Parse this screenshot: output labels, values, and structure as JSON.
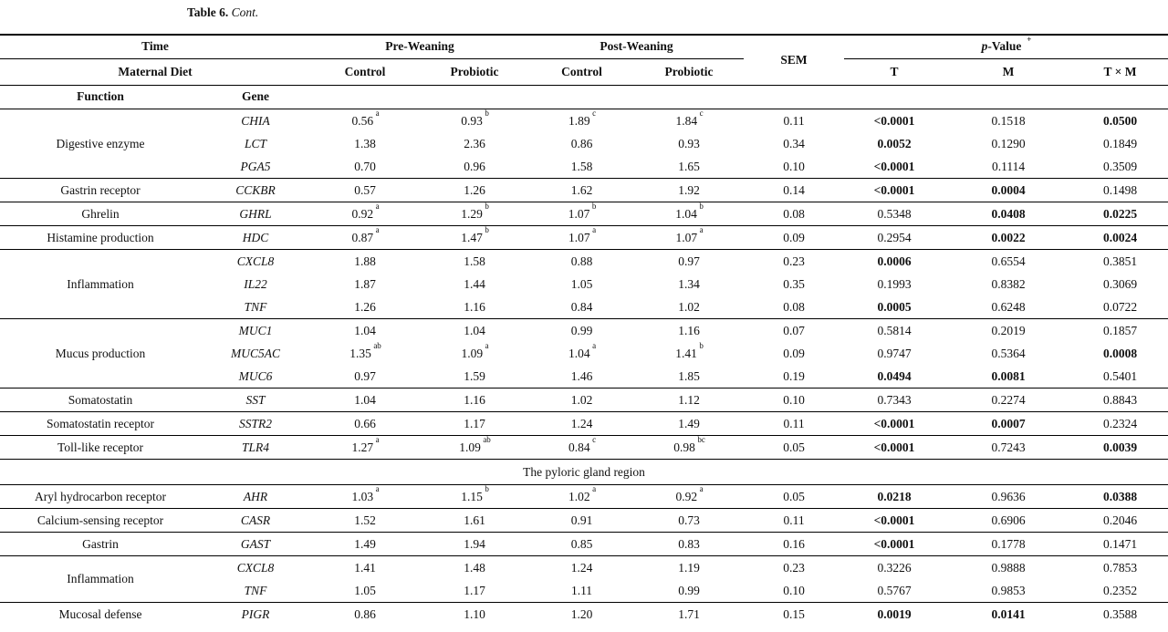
{
  "caption": {
    "label": "Table 6.",
    "cont": "Cont."
  },
  "header": {
    "time": "Time",
    "maternal_diet": "Maternal Diet",
    "function": "Function",
    "gene": "Gene",
    "pre_weaning": "Pre-Weaning",
    "post_weaning": "Post-Weaning",
    "sem": "SEM",
    "p_value": {
      "p": "p",
      "rest": "-Value",
      "sup": "+"
    },
    "control_pre": "Control",
    "probiotic_pre": "Probiotic",
    "control_post": "Control",
    "probiotic_post": "Probiotic",
    "t": "T",
    "m": "M",
    "t_x_m": "T × M"
  },
  "table": {
    "columns": [
      "Function",
      "Gene",
      "Pre-Weaning Control",
      "Pre-Weaning Probiotic",
      "Post-Weaning Control",
      "Post-Weaning Probiotic",
      "SEM",
      "p-Value T",
      "p-Value M",
      "p-Value T × M"
    ],
    "groups": [
      {
        "function": "Digestive enzyme",
        "rows": [
          {
            "gene": "CHIA",
            "cells": [
              {
                "t": "0.56",
                "s": "a"
              },
              {
                "t": "0.93",
                "s": "b"
              },
              {
                "t": "1.89",
                "s": "c"
              },
              {
                "t": "1.84",
                "s": "c"
              },
              {
                "t": "0.11"
              },
              {
                "t": "<0.0001",
                "b": true
              },
              {
                "t": "0.1518"
              },
              {
                "t": "0.0500",
                "b": true
              }
            ]
          },
          {
            "gene": "LCT",
            "cells": [
              {
                "t": "1.38"
              },
              {
                "t": "2.36"
              },
              {
                "t": "0.86"
              },
              {
                "t": "0.93"
              },
              {
                "t": "0.34"
              },
              {
                "t": "0.0052",
                "b": true
              },
              {
                "t": "0.1290"
              },
              {
                "t": "0.1849"
              }
            ]
          },
          {
            "gene": "PGA5",
            "cells": [
              {
                "t": "0.70"
              },
              {
                "t": "0.96"
              },
              {
                "t": "1.58"
              },
              {
                "t": "1.65"
              },
              {
                "t": "0.10"
              },
              {
                "t": "<0.0001",
                "b": true
              },
              {
                "t": "0.1114"
              },
              {
                "t": "0.3509"
              }
            ]
          }
        ]
      },
      {
        "function": "Gastrin receptor",
        "rows": [
          {
            "gene": "CCKBR",
            "cells": [
              {
                "t": "0.57"
              },
              {
                "t": "1.26"
              },
              {
                "t": "1.62"
              },
              {
                "t": "1.92"
              },
              {
                "t": "0.14"
              },
              {
                "t": "<0.0001",
                "b": true
              },
              {
                "t": "0.0004",
                "b": true
              },
              {
                "t": "0.1498"
              }
            ]
          }
        ]
      },
      {
        "function": "Ghrelin",
        "rows": [
          {
            "gene": "GHRL",
            "cells": [
              {
                "t": "0.92",
                "s": "a"
              },
              {
                "t": "1.29",
                "s": "b"
              },
              {
                "t": "1.07",
                "s": "b"
              },
              {
                "t": "1.04",
                "s": "b"
              },
              {
                "t": "0.08"
              },
              {
                "t": "0.5348"
              },
              {
                "t": "0.0408",
                "b": true
              },
              {
                "t": "0.0225",
                "b": true
              }
            ]
          }
        ]
      },
      {
        "function": "Histamine production",
        "rows": [
          {
            "gene": "HDC",
            "cells": [
              {
                "t": "0.87",
                "s": "a"
              },
              {
                "t": "1.47",
                "s": "b"
              },
              {
                "t": "1.07",
                "s": "a"
              },
              {
                "t": "1.07",
                "s": "a"
              },
              {
                "t": "0.09"
              },
              {
                "t": "0.2954"
              },
              {
                "t": "0.0022",
                "b": true
              },
              {
                "t": "0.0024",
                "b": true
              }
            ]
          }
        ]
      },
      {
        "function": "Inflammation",
        "rows": [
          {
            "gene": "CXCL8",
            "cells": [
              {
                "t": "1.88"
              },
              {
                "t": "1.58"
              },
              {
                "t": "0.88"
              },
              {
                "t": "0.97"
              },
              {
                "t": "0.23"
              },
              {
                "t": "0.0006",
                "b": true
              },
              {
                "t": "0.6554"
              },
              {
                "t": "0.3851"
              }
            ]
          },
          {
            "gene": "IL22",
            "cells": [
              {
                "t": "1.87"
              },
              {
                "t": "1.44"
              },
              {
                "t": "1.05"
              },
              {
                "t": "1.34"
              },
              {
                "t": "0.35"
              },
              {
                "t": "0.1993"
              },
              {
                "t": "0.8382"
              },
              {
                "t": "0.3069"
              }
            ]
          },
          {
            "gene": "TNF",
            "cells": [
              {
                "t": "1.26"
              },
              {
                "t": "1.16"
              },
              {
                "t": "0.84"
              },
              {
                "t": "1.02"
              },
              {
                "t": "0.08"
              },
              {
                "t": "0.0005",
                "b": true
              },
              {
                "t": "0.6248"
              },
              {
                "t": "0.0722"
              }
            ]
          }
        ]
      },
      {
        "function": "Mucus production",
        "rows": [
          {
            "gene": "MUC1",
            "cells": [
              {
                "t": "1.04"
              },
              {
                "t": "1.04"
              },
              {
                "t": "0.99"
              },
              {
                "t": "1.16"
              },
              {
                "t": "0.07"
              },
              {
                "t": "0.5814"
              },
              {
                "t": "0.2019"
              },
              {
                "t": "0.1857"
              }
            ]
          },
          {
            "gene": "MUC5AC",
            "cells": [
              {
                "t": "1.35",
                "s": "ab"
              },
              {
                "t": "1.09",
                "s": "a"
              },
              {
                "t": "1.04",
                "s": "a"
              },
              {
                "t": "1.41",
                "s": "b"
              },
              {
                "t": "0.09"
              },
              {
                "t": "0.9747"
              },
              {
                "t": "0.5364"
              },
              {
                "t": "0.0008",
                "b": true
              }
            ]
          },
          {
            "gene": "MUC6",
            "cells": [
              {
                "t": "0.97"
              },
              {
                "t": "1.59"
              },
              {
                "t": "1.46"
              },
              {
                "t": "1.85"
              },
              {
                "t": "0.19"
              },
              {
                "t": "0.0494",
                "b": true
              },
              {
                "t": "0.0081",
                "b": true
              },
              {
                "t": "0.5401"
              }
            ]
          }
        ]
      },
      {
        "function": "Somatostatin",
        "rows": [
          {
            "gene": "SST",
            "cells": [
              {
                "t": "1.04"
              },
              {
                "t": "1.16"
              },
              {
                "t": "1.02"
              },
              {
                "t": "1.12"
              },
              {
                "t": "0.10"
              },
              {
                "t": "0.7343"
              },
              {
                "t": "0.2274"
              },
              {
                "t": "0.8843"
              }
            ]
          }
        ]
      },
      {
        "function": "Somatostatin receptor",
        "rows": [
          {
            "gene": "SSTR2",
            "cells": [
              {
                "t": "0.66"
              },
              {
                "t": "1.17"
              },
              {
                "t": "1.24"
              },
              {
                "t": "1.49"
              },
              {
                "t": "0.11"
              },
              {
                "t": "<0.0001",
                "b": true
              },
              {
                "t": "0.0007",
                "b": true
              },
              {
                "t": "0.2324"
              }
            ]
          }
        ]
      },
      {
        "function": "Toll-like receptor",
        "rows": [
          {
            "gene": "TLR4",
            "cells": [
              {
                "t": "1.27",
                "s": "a"
              },
              {
                "t": "1.09",
                "s": "ab"
              },
              {
                "t": "0.84",
                "s": "c"
              },
              {
                "t": "0.98",
                "s": "bc"
              },
              {
                "t": "0.05"
              },
              {
                "t": "<0.0001",
                "b": true
              },
              {
                "t": "0.7243"
              },
              {
                "t": "0.0039",
                "b": true
              }
            ]
          }
        ]
      },
      {
        "section": "The pyloric gland region"
      },
      {
        "function": "Aryl hydrocarbon receptor",
        "rows": [
          {
            "gene": "AHR",
            "cells": [
              {
                "t": "1.03",
                "s": "a"
              },
              {
                "t": "1.15",
                "s": "b"
              },
              {
                "t": "1.02",
                "s": "a"
              },
              {
                "t": "0.92",
                "s": "a"
              },
              {
                "t": "0.05"
              },
              {
                "t": "0.0218",
                "b": true
              },
              {
                "t": "0.9636"
              },
              {
                "t": "0.0388",
                "b": true
              }
            ]
          }
        ]
      },
      {
        "function": "Calcium-sensing receptor",
        "rows": [
          {
            "gene": "CASR",
            "cells": [
              {
                "t": "1.52"
              },
              {
                "t": "1.61"
              },
              {
                "t": "0.91"
              },
              {
                "t": "0.73"
              },
              {
                "t": "0.11"
              },
              {
                "t": "<0.0001",
                "b": true
              },
              {
                "t": "0.6906"
              },
              {
                "t": "0.2046"
              }
            ]
          }
        ]
      },
      {
        "function": "Gastrin",
        "rows": [
          {
            "gene": "GAST",
            "cells": [
              {
                "t": "1.49"
              },
              {
                "t": "1.94"
              },
              {
                "t": "0.85"
              },
              {
                "t": "0.83"
              },
              {
                "t": "0.16"
              },
              {
                "t": "<0.0001",
                "b": true
              },
              {
                "t": "0.1778"
              },
              {
                "t": "0.1471"
              }
            ]
          }
        ]
      },
      {
        "function": "Inflammation",
        "rows": [
          {
            "gene": "CXCL8",
            "cells": [
              {
                "t": "1.41"
              },
              {
                "t": "1.48"
              },
              {
                "t": "1.24"
              },
              {
                "t": "1.19"
              },
              {
                "t": "0.23"
              },
              {
                "t": "0.3226"
              },
              {
                "t": "0.9888"
              },
              {
                "t": "0.7853"
              }
            ]
          },
          {
            "gene": "TNF",
            "cells": [
              {
                "t": "1.05"
              },
              {
                "t": "1.17"
              },
              {
                "t": "1.11"
              },
              {
                "t": "0.99"
              },
              {
                "t": "0.10"
              },
              {
                "t": "0.5767"
              },
              {
                "t": "0.9853"
              },
              {
                "t": "0.2352"
              }
            ]
          }
        ]
      },
      {
        "function": "Mucosal defense",
        "rows": [
          {
            "gene": "PIGR",
            "cells": [
              {
                "t": "0.86"
              },
              {
                "t": "1.10"
              },
              {
                "t": "1.20"
              },
              {
                "t": "1.71"
              },
              {
                "t": "0.15"
              },
              {
                "t": "0.0019",
                "b": true
              },
              {
                "t": "0.0141",
                "b": true
              },
              {
                "t": "0.3588"
              }
            ]
          }
        ]
      }
    ]
  }
}
